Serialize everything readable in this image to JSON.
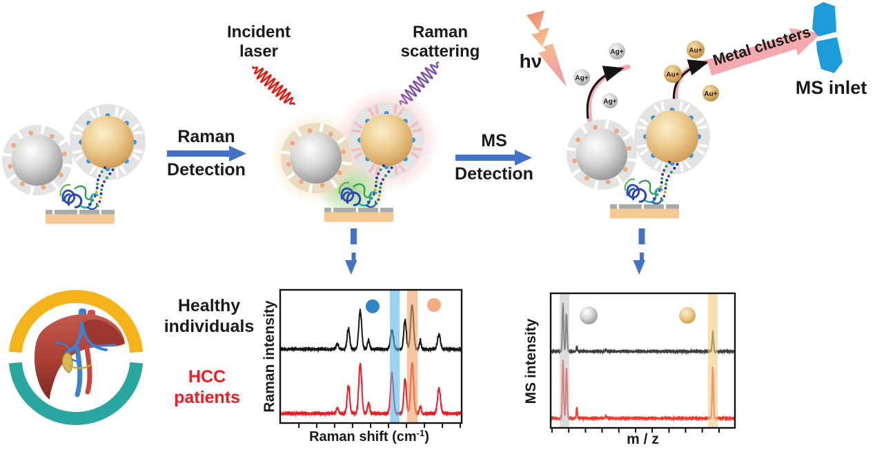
{
  "figure_labels": {
    "incident_laser": [
      "Incident",
      "laser"
    ],
    "raman_scattering": [
      "Raman",
      "scattering"
    ],
    "raman_detection": [
      "Raman",
      "Detection"
    ],
    "ms_detection": [
      "MS",
      "Detection"
    ],
    "hv": "hν",
    "metal_clusters": "Metal clusters",
    "ms_inlet": "MS inlet",
    "healthy_individuals": [
      "Healthy",
      "individuals"
    ],
    "hcc_patients": [
      "HCC",
      "patients"
    ],
    "ag_ion": "Ag+",
    "au_ion": "Au+",
    "raman_xlabel_parts": [
      "Raman shift (cm",
      "-1",
      ")"
    ]
  },
  "colors": {
    "detection_arrow_blue": "#4472C4",
    "incident_laser_red": "#E3170D",
    "raman_scattering_purple": "#7A4FA8",
    "hcc_red": "#EC1C24",
    "healthy_black": "#1A1A1A",
    "ms_inlet_blue": "#1C9CD8",
    "metal_cluster_arrow_pink": "#F2AAAF",
    "ring_yellow": "#F5B31B",
    "ring_teal": "#2AA6A1",
    "raman_band_blue": "#56B4EC",
    "raman_band_orange": "#F0A063",
    "ms_band_gray": "#BFBFBF",
    "ms_band_yellow": "#EFCB84"
  },
  "chart_data": [
    {
      "id": "raman",
      "type": "line",
      "title": "",
      "xlabel": "Raman shift (cm-1)",
      "ylabel": "Raman intensity",
      "legend_position": "top-inside",
      "grid": false,
      "noise_amp": 0.012,
      "x_ticks": [
        0.103,
        0.201,
        0.3,
        0.399,
        0.498,
        0.597,
        0.696,
        0.795,
        0.894,
        0.992
      ],
      "highlight_bands": [
        {
          "x0": 0.605,
          "x1": 0.658,
          "color": "#56B4EC",
          "opacity": 0.6
        },
        {
          "x0": 0.7,
          "x1": 0.757,
          "color": "#F0A063",
          "opacity": 0.62
        }
      ],
      "legend_markers": [
        {
          "name": "blue-dot-marker",
          "type": "dot",
          "color": "#2E86C8",
          "x": 0.509,
          "y": 0.124,
          "r": 10
        },
        {
          "name": "orange-dot-marker",
          "type": "dot",
          "color": "#F2AE80",
          "x": 0.848,
          "y": 0.114,
          "r": 10
        }
      ],
      "series": [
        {
          "name": "Healthy individuals",
          "color": "#151515",
          "baseline_frac": 0.55,
          "noise_seed": 3,
          "peaks": [
            {
              "x": 0.315,
              "h": 0.04,
              "w": 0.006
            },
            {
              "x": 0.376,
              "h": 0.155,
              "w": 0.007
            },
            {
              "x": 0.441,
              "h": 0.29,
              "w": 0.008
            },
            {
              "x": 0.487,
              "h": 0.07,
              "w": 0.006
            },
            {
              "x": 0.616,
              "h": 0.145,
              "w": 0.008
            },
            {
              "x": 0.688,
              "h": 0.22,
              "w": 0.007
            },
            {
              "x": 0.727,
              "h": 0.335,
              "w": 0.008
            },
            {
              "x": 0.772,
              "h": 0.065,
              "w": 0.005
            },
            {
              "x": 0.875,
              "h": 0.11,
              "w": 0.008
            }
          ]
        },
        {
          "name": "HCC patients",
          "color": "#EC1C24",
          "baseline_frac": 0.067,
          "noise_seed": 8,
          "peaks": [
            {
              "x": 0.315,
              "h": 0.045,
              "w": 0.006
            },
            {
              "x": 0.376,
              "h": 0.21,
              "w": 0.007
            },
            {
              "x": 0.441,
              "h": 0.375,
              "w": 0.008
            },
            {
              "x": 0.487,
              "h": 0.08,
              "w": 0.006
            },
            {
              "x": 0.616,
              "h": 0.3,
              "w": 0.008
            },
            {
              "x": 0.688,
              "h": 0.26,
              "w": 0.007
            },
            {
              "x": 0.727,
              "h": 0.38,
              "w": 0.008
            },
            {
              "x": 0.772,
              "h": 0.055,
              "w": 0.005
            },
            {
              "x": 0.875,
              "h": 0.19,
              "w": 0.008
            }
          ]
        }
      ]
    },
    {
      "id": "ms",
      "type": "line",
      "title": "",
      "xlabel": "m / z",
      "ylabel": "MS intensity",
      "legend_position": "top-inside",
      "grid": false,
      "noise_amp": 0.011,
      "x_ticks": [
        0.007,
        0.098,
        0.189,
        0.279,
        0.37,
        0.461,
        0.551,
        0.642,
        0.732,
        0.823,
        0.914
      ],
      "highlight_bands": [
        {
          "x0": 0.049,
          "x1": 0.101,
          "color": "#BFBFBF",
          "opacity": 0.55
        },
        {
          "x0": 0.854,
          "x1": 0.906,
          "color": "#EFCB84",
          "opacity": 0.62
        }
      ],
      "legend_markers": [
        {
          "name": "silver-sphere-marker",
          "type": "sphere-silver",
          "x": 0.206,
          "y": 0.164,
          "r": 13
        },
        {
          "name": "gold-sphere-marker",
          "type": "sphere-gold",
          "x": 0.742,
          "y": 0.164,
          "r": 12
        }
      ],
      "series": [
        {
          "name": "Healthy individuals",
          "color": "#3F3F3F",
          "baseline_frac": 0.564,
          "noise_seed": 5,
          "peaks": [
            {
              "x": 0.067,
              "h": 0.36,
              "w": 0.0035
            },
            {
              "x": 0.086,
              "h": 0.28,
              "w": 0.0035
            },
            {
              "x": 0.142,
              "h": 0.035,
              "w": 0.003
            },
            {
              "x": 0.3,
              "h": 0.012,
              "w": 0.004
            },
            {
              "x": 0.88,
              "h": 0.145,
              "w": 0.0035
            }
          ]
        },
        {
          "name": "HCC patients",
          "color": "#EE3A30",
          "baseline_frac": 0.067,
          "noise_seed": 11,
          "peaks": [
            {
              "x": 0.067,
              "h": 0.44,
              "w": 0.0035
            },
            {
              "x": 0.086,
              "h": 0.38,
              "w": 0.0035
            },
            {
              "x": 0.142,
              "h": 0.08,
              "w": 0.003
            },
            {
              "x": 0.3,
              "h": 0.015,
              "w": 0.004
            },
            {
              "x": 0.88,
              "h": 0.385,
              "w": 0.0035
            }
          ]
        }
      ]
    }
  ]
}
